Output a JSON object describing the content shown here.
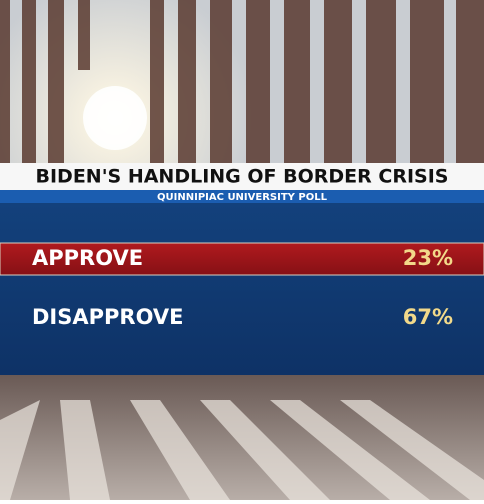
{
  "header": {
    "title": "BIDEN'S HANDLING OF BORDER CRISIS",
    "subtitle": "QUINNIPIAC UNIVERSITY POLL"
  },
  "rows": [
    {
      "label": "APPROVE",
      "value": "23%"
    },
    {
      "label": "DISAPPROVE",
      "value": "67%"
    }
  ]
}
